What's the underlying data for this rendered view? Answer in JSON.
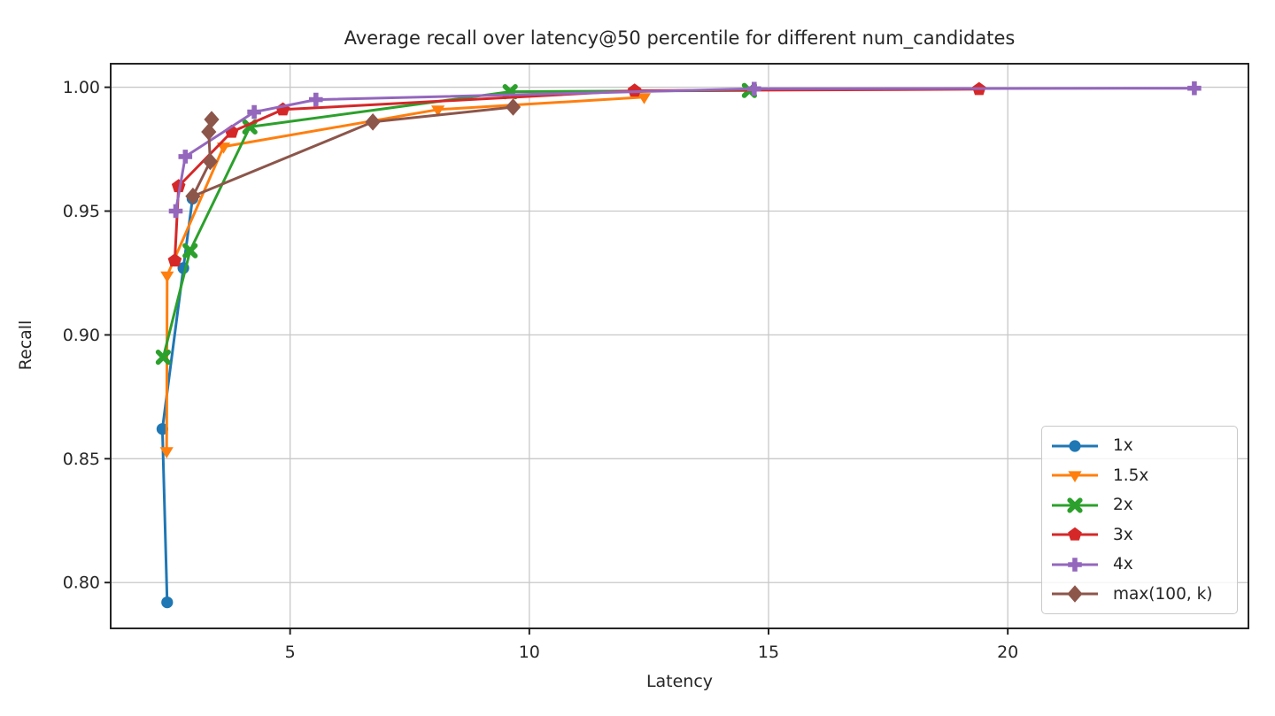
{
  "chart_data": {
    "type": "line",
    "title": "Average recall over latency@50 percentile for different num_candidates",
    "xlabel": "Latency",
    "ylabel": "Recall",
    "xlim": [
      1.25,
      25.03
    ],
    "ylim": [
      0.7815,
      1.0095
    ],
    "xticks": [
      5,
      10,
      15,
      20
    ],
    "yticks": [
      0.8,
      0.85,
      0.9,
      0.95,
      1.0
    ],
    "ytick_labels": [
      "0.80",
      "0.85",
      "0.90",
      "0.95",
      "1.00"
    ],
    "xtick_labels": [
      "5",
      "10",
      "15",
      "20"
    ],
    "grid": true,
    "legend_position": "lower right",
    "axis_color": "#1a1a1a",
    "grid_color": "#c8c8c8",
    "series": [
      {
        "name": "1x",
        "color": "#1f77b4",
        "marker": "circle",
        "points": [
          [
            2.43,
            0.792
          ],
          [
            2.33,
            0.862
          ],
          [
            2.77,
            0.927
          ],
          [
            2.96,
            0.955
          ]
        ]
      },
      {
        "name": "1.5x",
        "color": "#ff7f0e",
        "marker": "triangle-down",
        "points": [
          [
            2.42,
            0.853
          ],
          [
            2.43,
            0.924
          ],
          [
            3.61,
            0.976
          ],
          [
            8.09,
            0.991
          ],
          [
            12.4,
            0.996
          ]
        ]
      },
      {
        "name": "2x",
        "color": "#2ca02c",
        "marker": "x-thick",
        "points": [
          [
            2.35,
            0.891
          ],
          [
            2.91,
            0.934
          ],
          [
            4.16,
            0.984
          ],
          [
            9.6,
            0.9982
          ],
          [
            14.6,
            0.9987
          ]
        ]
      },
      {
        "name": "3x",
        "color": "#d62728",
        "marker": "pentagon",
        "points": [
          [
            2.59,
            0.93
          ],
          [
            2.67,
            0.96
          ],
          [
            3.78,
            0.982
          ],
          [
            4.85,
            0.991
          ],
          [
            12.2,
            0.9986
          ],
          [
            19.4,
            0.9992
          ]
        ]
      },
      {
        "name": "4x",
        "color": "#9467bd",
        "marker": "plus",
        "points": [
          [
            2.61,
            0.95
          ],
          [
            2.81,
            0.972
          ],
          [
            4.25,
            0.99
          ],
          [
            5.54,
            0.995
          ],
          [
            14.7,
            0.9994
          ],
          [
            23.9,
            0.9996
          ]
        ]
      },
      {
        "name": "max(100, k)",
        "color": "#8c564b",
        "marker": "diamond",
        "points": [
          [
            3.36,
            0.987
          ],
          [
            3.3,
            0.982
          ],
          [
            3.33,
            0.97
          ],
          [
            2.97,
            0.956
          ],
          [
            6.73,
            0.986
          ],
          [
            9.66,
            0.992
          ]
        ]
      }
    ]
  }
}
